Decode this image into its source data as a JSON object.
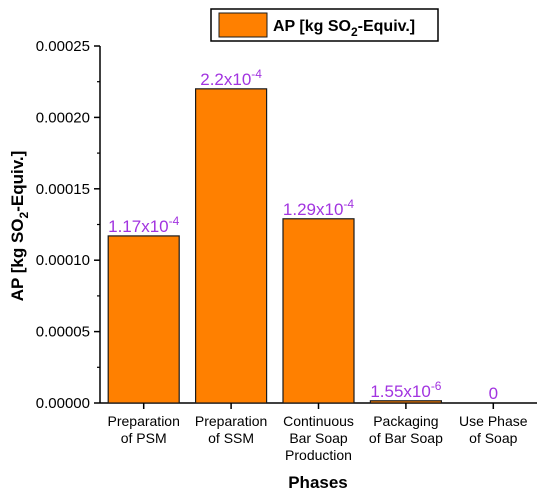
{
  "chart_data": {
    "type": "bar",
    "title": "",
    "xlabel": "Phases",
    "ylabel": "AP [kg SO2-Equiv.]",
    "ylabel_parts": {
      "pre": "AP [kg SO",
      "sub": "2",
      "post": "-Equiv.]"
    },
    "categories": [
      [
        "Preparation",
        "of PSM"
      ],
      [
        "Preparation",
        "of SSM"
      ],
      [
        "Continuous",
        "Bar Soap",
        "Production"
      ],
      [
        "Packaging",
        "of Bar Soap"
      ],
      [
        "Use Phase",
        "of Soap"
      ]
    ],
    "series": [
      {
        "name": "AP [kg SO2-Equiv.]",
        "name_parts": {
          "pre": "AP [kg SO",
          "sub": "2",
          "post": "-Equiv.]"
        },
        "values": [
          0.000117,
          0.00022,
          0.000129,
          1.55e-06,
          0
        ],
        "data_labels": [
          {
            "base": "1.17x10",
            "exp": "-4"
          },
          {
            "base": "2.2x10",
            "exp": "-4"
          },
          {
            "base": "1.29x10",
            "exp": "-4"
          },
          {
            "base": "1.55x10",
            "exp": "-6"
          },
          {
            "base": "0",
            "exp": ""
          }
        ]
      }
    ],
    "ylim": [
      0,
      0.00025
    ],
    "yticks": [
      "0.00000",
      "0.00005",
      "0.00010",
      "0.00015",
      "0.00020",
      "0.00025"
    ],
    "ytick_values": [
      0,
      5e-05,
      0.0001,
      0.00015,
      0.0002,
      0.00025
    ],
    "legend_position": "top",
    "grid": false,
    "colors": {
      "bar": "#ff8000",
      "bar_edge": "#1a1a1a",
      "label": "#a234e0",
      "axis": "#000000"
    }
  }
}
